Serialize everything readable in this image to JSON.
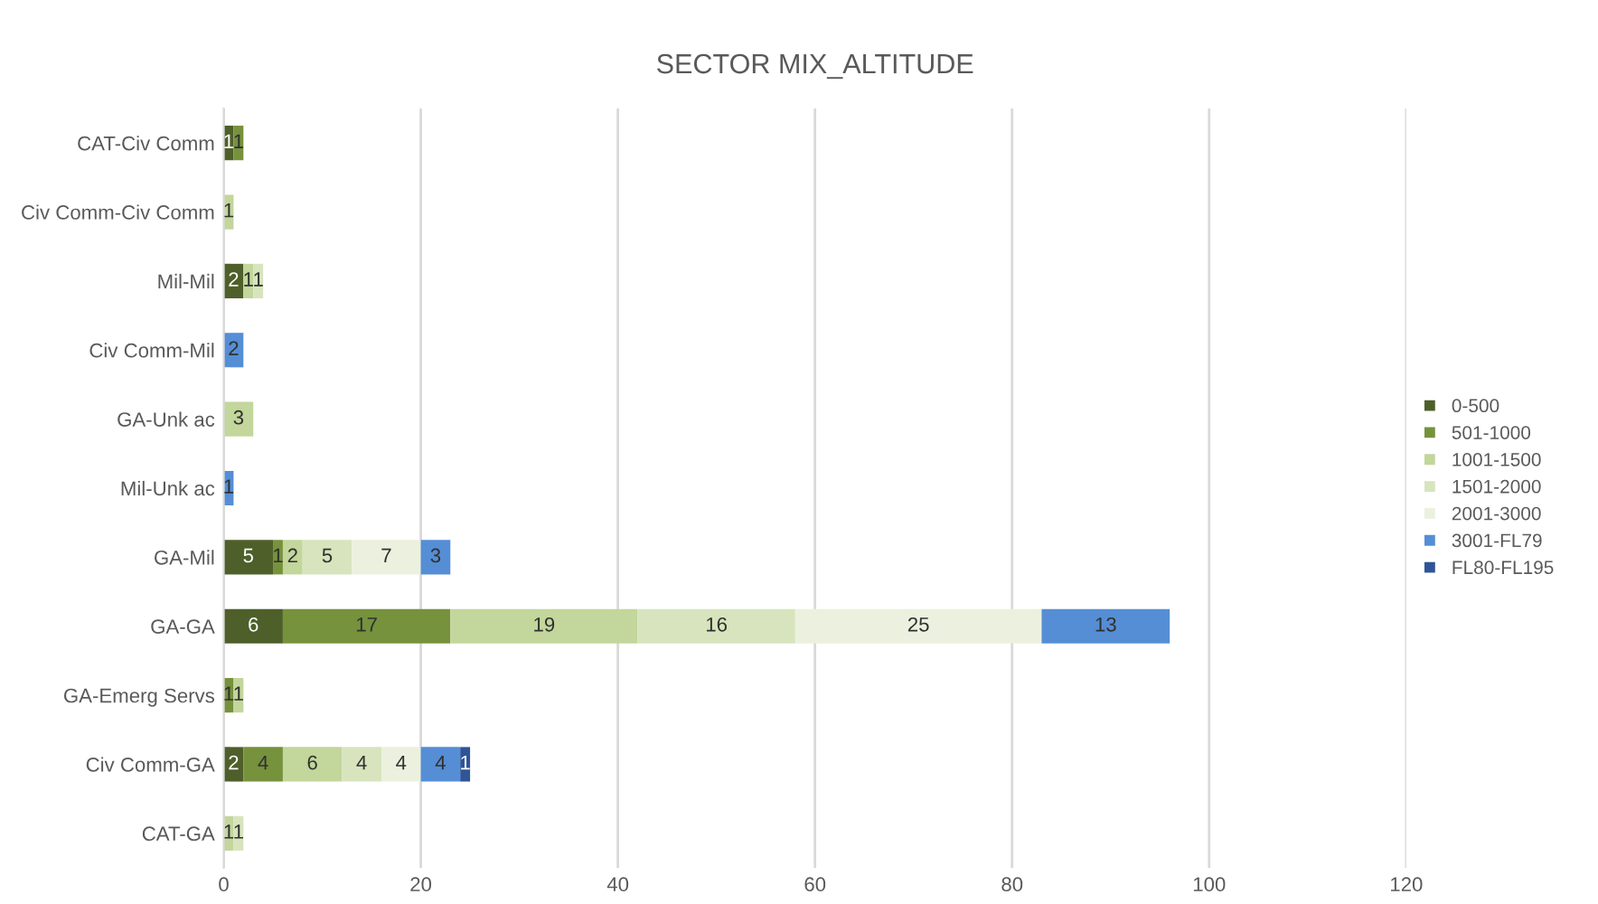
{
  "chart_data": {
    "type": "bar",
    "title": "SECTOR MIX_ALTITUDE",
    "orientation": "horizontal",
    "stacked": true,
    "data_labels": true,
    "categories": [
      "CAT-Civ Comm",
      "Civ Comm-Civ Comm",
      "Mil-Mil",
      "Civ Comm-Mil",
      "GA-Unk ac",
      "Mil-Unk ac",
      "GA-Mil",
      "GA-GA",
      "GA-Emerg Servs",
      "Civ Comm-GA",
      "CAT-GA"
    ],
    "series": [
      {
        "name": "0-500",
        "color": "#4e5f2a",
        "values": [
          1,
          null,
          2,
          null,
          null,
          null,
          5,
          6,
          null,
          2,
          null
        ]
      },
      {
        "name": "501-1000",
        "color": "#76923c",
        "values": [
          1,
          null,
          null,
          null,
          null,
          null,
          1,
          17,
          1,
          4,
          null
        ]
      },
      {
        "name": "1001-1500",
        "color": "#c3d69b",
        "values": [
          null,
          1,
          1,
          null,
          3,
          null,
          2,
          19,
          1,
          6,
          1
        ]
      },
      {
        "name": "1501-2000",
        "color": "#d7e4bd",
        "values": [
          null,
          null,
          1,
          null,
          null,
          null,
          5,
          16,
          null,
          4,
          1
        ]
      },
      {
        "name": "2001-3000",
        "color": "#ebf1de",
        "values": [
          null,
          null,
          null,
          null,
          null,
          null,
          7,
          25,
          null,
          4,
          null
        ]
      },
      {
        "name": "3001-FL79",
        "color": "#558ed5",
        "values": [
          null,
          null,
          null,
          2,
          null,
          1,
          3,
          13,
          null,
          4,
          null
        ]
      },
      {
        "name": "FL80-FL195",
        "color": "#2f5597",
        "values": [
          null,
          null,
          null,
          null,
          null,
          null,
          null,
          null,
          null,
          1,
          null
        ]
      }
    ],
    "xlim": [
      0,
      120
    ],
    "xticks": [
      0,
      20,
      40,
      60,
      80,
      100,
      120
    ],
    "grid": "x",
    "legend": "right"
  }
}
